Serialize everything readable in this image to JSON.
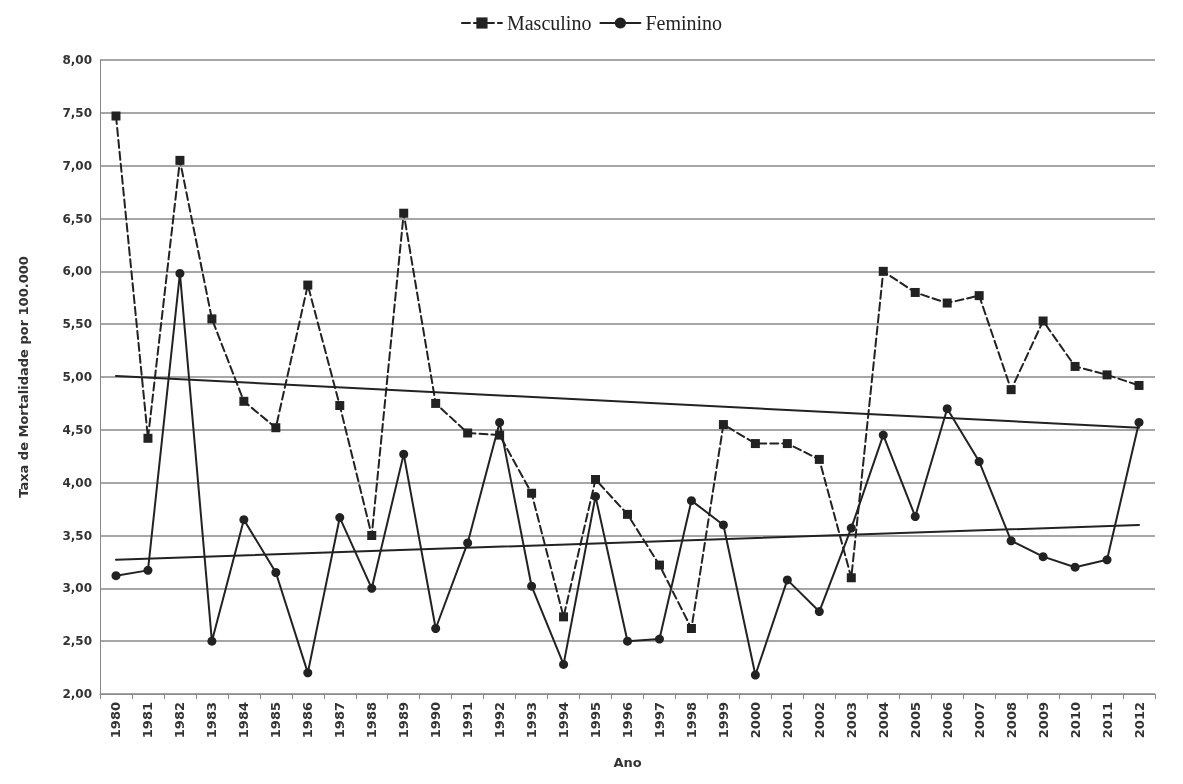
{
  "chart_data": {
    "type": "line",
    "xlabel": "Ano",
    "ylabel": "Taxa de Mortalidade por 100.000",
    "categories": [
      "1980",
      "1981",
      "1982",
      "1983",
      "1984",
      "1985",
      "1986",
      "1987",
      "1988",
      "1989",
      "1990",
      "1991",
      "1992",
      "1993",
      "1994",
      "1995",
      "1996",
      "1997",
      "1998",
      "1999",
      "2000",
      "2001",
      "2002",
      "2003",
      "2004",
      "2005",
      "2006",
      "2007",
      "2008",
      "2009",
      "2010",
      "2011",
      "2012"
    ],
    "series": [
      {
        "name": "Masculino",
        "color": "#222222",
        "marker": "square",
        "line_style": "dashed",
        "values": [
          7.47,
          4.42,
          7.05,
          5.55,
          4.77,
          4.52,
          5.87,
          4.73,
          3.5,
          6.55,
          4.75,
          4.47,
          4.45,
          3.9,
          2.73,
          4.03,
          3.7,
          3.22,
          2.62,
          4.55,
          4.37,
          4.37,
          4.22,
          3.1,
          6.0,
          5.8,
          5.7,
          5.77,
          4.88,
          5.53,
          5.1,
          5.02,
          4.92
        ]
      },
      {
        "name": "Feminino",
        "color": "#222222",
        "marker": "circle",
        "line_style": "solid",
        "values": [
          3.12,
          3.17,
          5.98,
          2.5,
          3.65,
          3.15,
          2.2,
          3.67,
          3.0,
          4.27,
          2.62,
          3.43,
          4.57,
          3.02,
          2.28,
          3.87,
          2.5,
          2.52,
          3.83,
          3.6,
          2.18,
          3.08,
          2.78,
          3.57,
          4.45,
          3.68,
          4.7,
          4.2,
          3.45,
          3.3,
          3.2,
          3.27,
          4.57
        ]
      },
      {
        "type": "line",
        "color": "#222222",
        "marker": "none",
        "line_style": "solid",
        "values": [
          5.01,
          null,
          null,
          null,
          null,
          null,
          null,
          null,
          null,
          null,
          null,
          null,
          null,
          null,
          null,
          null,
          null,
          null,
          null,
          null,
          null,
          null,
          null,
          null,
          null,
          null,
          null,
          null,
          null,
          null,
          null,
          null,
          4.52
        ]
      },
      {
        "type": "line",
        "color": "#222222",
        "marker": "none",
        "line_style": "solid",
        "values": [
          3.27,
          null,
          null,
          null,
          null,
          null,
          null,
          null,
          null,
          null,
          null,
          null,
          null,
          null,
          null,
          null,
          null,
          null,
          null,
          null,
          null,
          null,
          null,
          null,
          null,
          null,
          null,
          null,
          null,
          null,
          null,
          null,
          3.6
        ]
      }
    ],
    "ylim": [
      2,
      8
    ],
    "yticks": [
      {
        "value": 2,
        "label": "2,00"
      },
      {
        "value": 2.5,
        "label": "2,50"
      },
      {
        "value": 3,
        "label": "3,00"
      },
      {
        "value": 3.5,
        "label": "3,50"
      },
      {
        "value": 4,
        "label": "4,00"
      },
      {
        "value": 4.5,
        "label": "4,50"
      },
      {
        "value": 5,
        "label": "5,00"
      },
      {
        "value": 5.5,
        "label": "5,50"
      },
      {
        "value": 6,
        "label": "6,00"
      },
      {
        "value": 6.5,
        "label": "6,50"
      },
      {
        "value": 7,
        "label": "7,00"
      },
      {
        "value": 7.5,
        "label": "7,50"
      },
      {
        "value": 8,
        "label": "8,00"
      }
    ],
    "grid": "y",
    "legend": "top"
  }
}
